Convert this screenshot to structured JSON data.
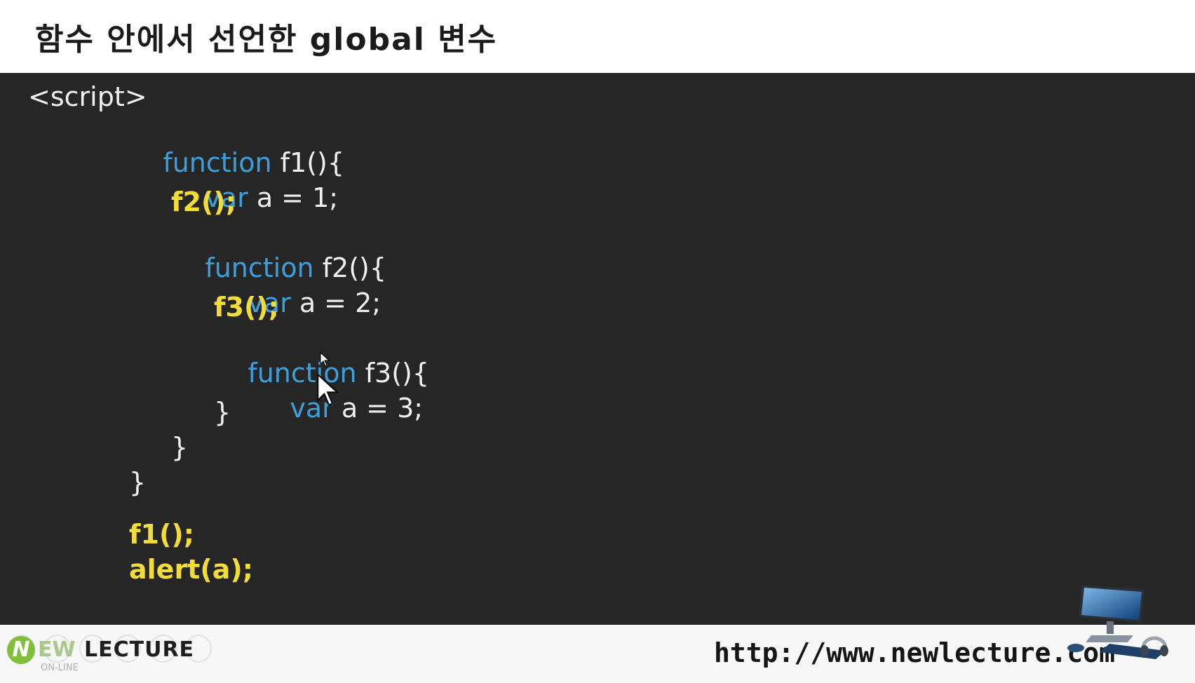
{
  "title": "함수 안에서 선언한 global 변수",
  "code": {
    "l1": "<script>",
    "l2_kw": "function",
    "l2_tx": " f1(){",
    "l3_kw": "var",
    "l3_tx": " a = 1;",
    "l4": "f2();",
    "l5_kw": "function",
    "l5_tx": " f2(){",
    "l6_kw": "var",
    "l6_tx": " a = 2;",
    "l7": "f3();",
    "l8_kw": "function",
    "l8_tx": " f3(){",
    "l9_kw": "var",
    "l9_tx": " a = 3;",
    "l10": "}",
    "l11": "}",
    "l12": "}",
    "l13": "f1();",
    "l14": "alert(a);"
  },
  "footer": {
    "brand_n": "N",
    "brand_ew": "EW",
    "brand_lecture": "LECTURE",
    "brand_sub": "ON-LINE",
    "url": "http://www.newlecture.com"
  },
  "colors": {
    "keyword": "#3c9fdc",
    "text": "#f0f0f0",
    "call": "#f2dc3a",
    "panel": "#262626"
  },
  "icons": [
    "cursor-arrow-icon",
    "computer-icon",
    "headset-icon"
  ]
}
